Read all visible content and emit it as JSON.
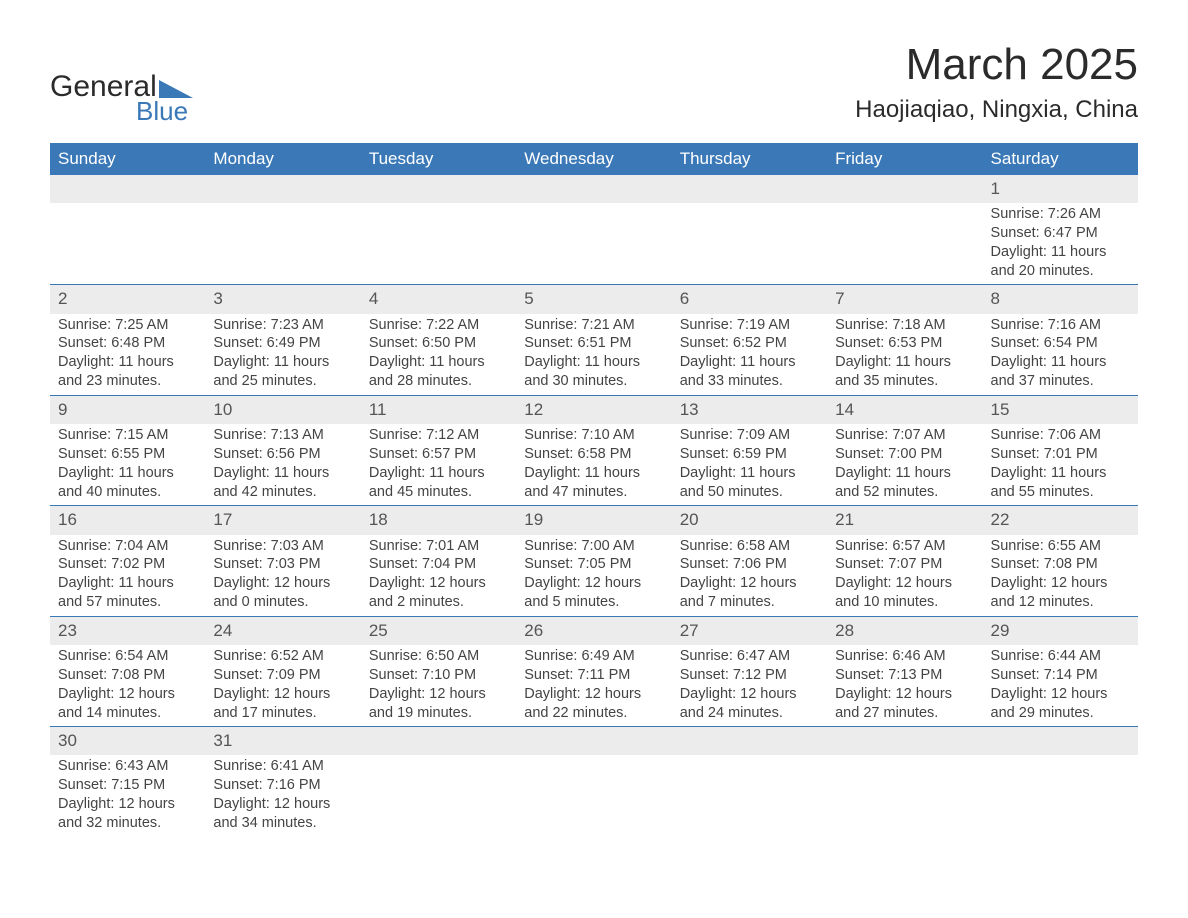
{
  "logo": {
    "text_top": "General",
    "text_bottom": "Blue",
    "triangle_color": "#3a78b7"
  },
  "title": "March 2025",
  "location": "Haojiaqiao, Ningxia, China",
  "colors": {
    "header_bg": "#3a78b7",
    "header_text": "#ffffff",
    "daynum_bg": "#ececec",
    "row_border": "#3a78b7",
    "body_text": "#444444",
    "title_text": "#2b2b2b",
    "background": "#ffffff"
  },
  "typography": {
    "title_fontsize": 44,
    "location_fontsize": 24,
    "dayheader_fontsize": 17,
    "daynum_fontsize": 17,
    "body_fontsize": 14.5
  },
  "day_headers": [
    "Sunday",
    "Monday",
    "Tuesday",
    "Wednesday",
    "Thursday",
    "Friday",
    "Saturday"
  ],
  "weeks": [
    [
      null,
      null,
      null,
      null,
      null,
      null,
      {
        "n": "1",
        "sunrise": "7:26 AM",
        "sunset": "6:47 PM",
        "dl_h": "11",
        "dl_m": "20"
      }
    ],
    [
      {
        "n": "2",
        "sunrise": "7:25 AM",
        "sunset": "6:48 PM",
        "dl_h": "11",
        "dl_m": "23"
      },
      {
        "n": "3",
        "sunrise": "7:23 AM",
        "sunset": "6:49 PM",
        "dl_h": "11",
        "dl_m": "25"
      },
      {
        "n": "4",
        "sunrise": "7:22 AM",
        "sunset": "6:50 PM",
        "dl_h": "11",
        "dl_m": "28"
      },
      {
        "n": "5",
        "sunrise": "7:21 AM",
        "sunset": "6:51 PM",
        "dl_h": "11",
        "dl_m": "30"
      },
      {
        "n": "6",
        "sunrise": "7:19 AM",
        "sunset": "6:52 PM",
        "dl_h": "11",
        "dl_m": "33"
      },
      {
        "n": "7",
        "sunrise": "7:18 AM",
        "sunset": "6:53 PM",
        "dl_h": "11",
        "dl_m": "35"
      },
      {
        "n": "8",
        "sunrise": "7:16 AM",
        "sunset": "6:54 PM",
        "dl_h": "11",
        "dl_m": "37"
      }
    ],
    [
      {
        "n": "9",
        "sunrise": "7:15 AM",
        "sunset": "6:55 PM",
        "dl_h": "11",
        "dl_m": "40"
      },
      {
        "n": "10",
        "sunrise": "7:13 AM",
        "sunset": "6:56 PM",
        "dl_h": "11",
        "dl_m": "42"
      },
      {
        "n": "11",
        "sunrise": "7:12 AM",
        "sunset": "6:57 PM",
        "dl_h": "11",
        "dl_m": "45"
      },
      {
        "n": "12",
        "sunrise": "7:10 AM",
        "sunset": "6:58 PM",
        "dl_h": "11",
        "dl_m": "47"
      },
      {
        "n": "13",
        "sunrise": "7:09 AM",
        "sunset": "6:59 PM",
        "dl_h": "11",
        "dl_m": "50"
      },
      {
        "n": "14",
        "sunrise": "7:07 AM",
        "sunset": "7:00 PM",
        "dl_h": "11",
        "dl_m": "52"
      },
      {
        "n": "15",
        "sunrise": "7:06 AM",
        "sunset": "7:01 PM",
        "dl_h": "11",
        "dl_m": "55"
      }
    ],
    [
      {
        "n": "16",
        "sunrise": "7:04 AM",
        "sunset": "7:02 PM",
        "dl_h": "11",
        "dl_m": "57"
      },
      {
        "n": "17",
        "sunrise": "7:03 AM",
        "sunset": "7:03 PM",
        "dl_h": "12",
        "dl_m": "0"
      },
      {
        "n": "18",
        "sunrise": "7:01 AM",
        "sunset": "7:04 PM",
        "dl_h": "12",
        "dl_m": "2"
      },
      {
        "n": "19",
        "sunrise": "7:00 AM",
        "sunset": "7:05 PM",
        "dl_h": "12",
        "dl_m": "5"
      },
      {
        "n": "20",
        "sunrise": "6:58 AM",
        "sunset": "7:06 PM",
        "dl_h": "12",
        "dl_m": "7"
      },
      {
        "n": "21",
        "sunrise": "6:57 AM",
        "sunset": "7:07 PM",
        "dl_h": "12",
        "dl_m": "10"
      },
      {
        "n": "22",
        "sunrise": "6:55 AM",
        "sunset": "7:08 PM",
        "dl_h": "12",
        "dl_m": "12"
      }
    ],
    [
      {
        "n": "23",
        "sunrise": "6:54 AM",
        "sunset": "7:08 PM",
        "dl_h": "12",
        "dl_m": "14"
      },
      {
        "n": "24",
        "sunrise": "6:52 AM",
        "sunset": "7:09 PM",
        "dl_h": "12",
        "dl_m": "17"
      },
      {
        "n": "25",
        "sunrise": "6:50 AM",
        "sunset": "7:10 PM",
        "dl_h": "12",
        "dl_m": "19"
      },
      {
        "n": "26",
        "sunrise": "6:49 AM",
        "sunset": "7:11 PM",
        "dl_h": "12",
        "dl_m": "22"
      },
      {
        "n": "27",
        "sunrise": "6:47 AM",
        "sunset": "7:12 PM",
        "dl_h": "12",
        "dl_m": "24"
      },
      {
        "n": "28",
        "sunrise": "6:46 AM",
        "sunset": "7:13 PM",
        "dl_h": "12",
        "dl_m": "27"
      },
      {
        "n": "29",
        "sunrise": "6:44 AM",
        "sunset": "7:14 PM",
        "dl_h": "12",
        "dl_m": "29"
      }
    ],
    [
      {
        "n": "30",
        "sunrise": "6:43 AM",
        "sunset": "7:15 PM",
        "dl_h": "12",
        "dl_m": "32"
      },
      {
        "n": "31",
        "sunrise": "6:41 AM",
        "sunset": "7:16 PM",
        "dl_h": "12",
        "dl_m": "34"
      },
      null,
      null,
      null,
      null,
      null
    ]
  ],
  "labels": {
    "sunrise": "Sunrise: ",
    "sunset": "Sunset: ",
    "daylight_prefix": "Daylight: ",
    "hours_word": " hours",
    "and_word": "and ",
    "minutes_word": " minutes."
  }
}
